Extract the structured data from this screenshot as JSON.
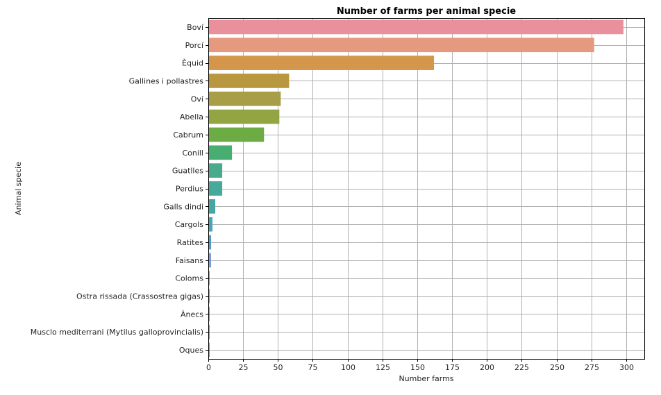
{
  "chart_data": {
    "type": "bar",
    "orientation": "horizontal",
    "title": "Number of farms per animal specie",
    "xlabel": "Number farms",
    "ylabel": "Animal specie",
    "xlim": [
      0,
      313
    ],
    "xticks": [
      0,
      25,
      50,
      75,
      100,
      125,
      150,
      175,
      200,
      225,
      250,
      275,
      300
    ],
    "grid": true,
    "legend": "none",
    "categories": [
      "Boví",
      "Porcí",
      "Èquid",
      "Gallines i pollastres",
      "Oví",
      "Abella",
      "Cabrum",
      "Conill",
      "Guatlles",
      "Perdius",
      "Galls dindi",
      "Cargols",
      "Ratites",
      "Faisans",
      "Coloms",
      "Ostra rissada (Crassostrea gigas)",
      "Ànecs",
      "Musclo mediterrani (Mytilus galloprovincialis)",
      "Oques"
    ],
    "values": [
      298,
      277,
      162,
      58,
      52,
      51,
      40,
      17,
      10,
      10,
      5,
      3,
      2,
      2,
      1,
      1,
      1,
      1,
      1
    ],
    "colors": [
      "#e8919c",
      "#e59a7f",
      "#d4964a",
      "#b8973f",
      "#a79e47",
      "#93a542",
      "#6dac45",
      "#47ad70",
      "#49aa8c",
      "#47a99a",
      "#45a6a4",
      "#46a6b8",
      "#4b9fcf",
      "#7a9ce0",
      "#8e8ae0",
      "#a77ad8",
      "#c56ccf",
      "#d566b5",
      "#d86b9a"
    ]
  }
}
